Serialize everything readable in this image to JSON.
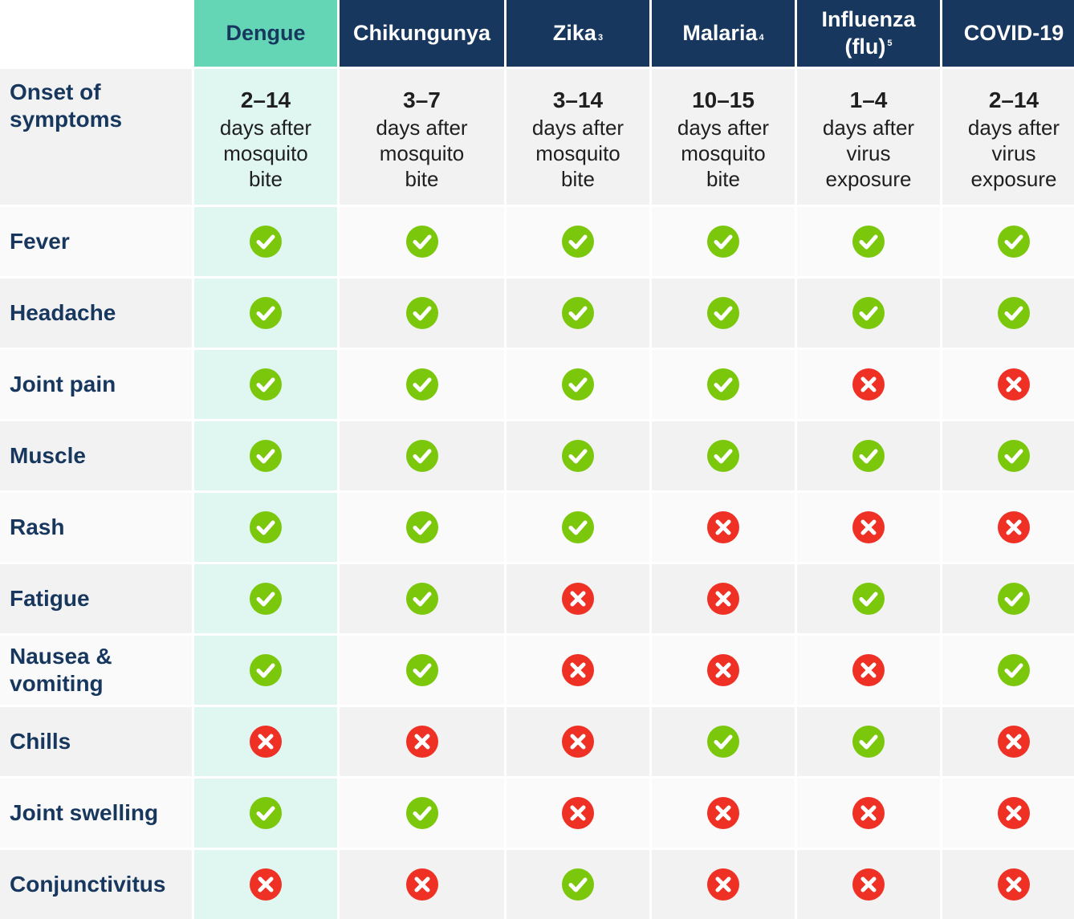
{
  "columns": [
    {
      "name": "Dengue",
      "sup": ""
    },
    {
      "name": "Chikungunya",
      "sup": ""
    },
    {
      "name": "Zika",
      "sup": "3"
    },
    {
      "name": "Malaria",
      "sup": "4"
    },
    {
      "name": "Influenza (flu)",
      "sup": "5"
    },
    {
      "name": "COVID-19",
      "sup": ""
    }
  ],
  "onset": {
    "label": "Onset of symptoms",
    "values": [
      {
        "num": "2–14",
        "l1": "days after",
        "l2": "mosquito",
        "l3": "bite"
      },
      {
        "num": "3–7",
        "l1": "days after",
        "l2": "mosquito",
        "l3": "bite"
      },
      {
        "num": "3–14",
        "l1": "days after",
        "l2": "mosquito",
        "l3": "bite"
      },
      {
        "num": "10–15",
        "l1": "days after",
        "l2": "mosquito",
        "l3": "bite"
      },
      {
        "num": "1–4",
        "l1": "days after",
        "l2": "virus",
        "l3": "exposure"
      },
      {
        "num": "2–14",
        "l1": "days after",
        "l2": "virus",
        "l3": "exposure"
      }
    ]
  },
  "symptoms": [
    {
      "name": "Fever",
      "values": [
        true,
        true,
        true,
        true,
        true,
        true
      ]
    },
    {
      "name": "Headache",
      "values": [
        true,
        true,
        true,
        true,
        true,
        true
      ]
    },
    {
      "name": "Joint pain",
      "values": [
        true,
        true,
        true,
        true,
        false,
        false
      ]
    },
    {
      "name": "Muscle",
      "values": [
        true,
        true,
        true,
        true,
        true,
        true
      ]
    },
    {
      "name": "Rash",
      "values": [
        true,
        true,
        true,
        false,
        false,
        false
      ]
    },
    {
      "name": "Fatigue",
      "values": [
        true,
        true,
        false,
        false,
        true,
        true
      ]
    },
    {
      "name": "Nausea & vomiting",
      "values": [
        true,
        true,
        false,
        false,
        false,
        true
      ]
    },
    {
      "name": "Chills",
      "values": [
        false,
        false,
        false,
        true,
        true,
        false
      ]
    },
    {
      "name": "Joint swelling",
      "values": [
        true,
        true,
        false,
        false,
        false,
        false
      ]
    },
    {
      "name": "Conjunctivitus",
      "values": [
        false,
        false,
        true,
        false,
        false,
        false
      ]
    }
  ],
  "colors": {
    "header_bg": "#17375e",
    "dengue_header_bg": "#64d6b6",
    "dengue_col_bg": "#e0f6f0",
    "check": "#7ac70c",
    "cross": "#ee3124"
  },
  "icons": {
    "yes": "check-circle-icon",
    "no": "cross-circle-icon"
  }
}
